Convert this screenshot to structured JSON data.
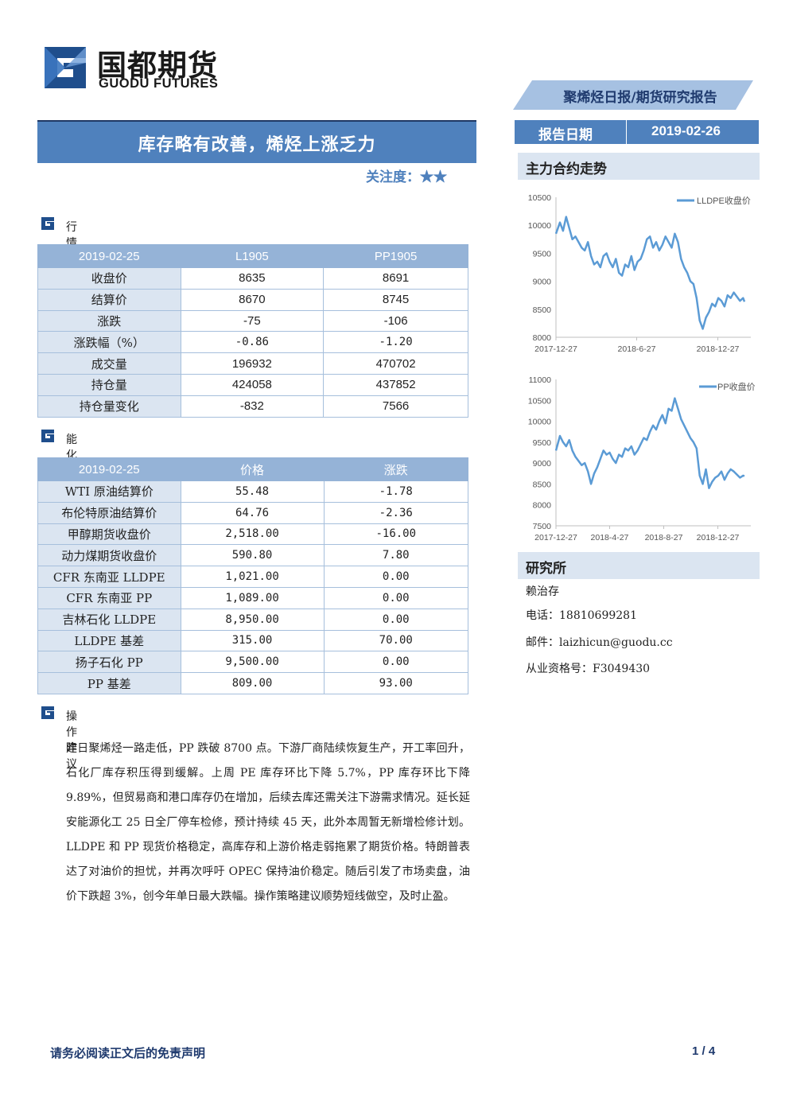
{
  "logo": {
    "cn": "国都期货",
    "en": "GUODU FUTURES"
  },
  "banner": "聚烯烃日报/期货研究报告",
  "title": "库存略有改善，烯烃上涨乏力",
  "attention": {
    "label": "关注度：",
    "stars": "★★"
  },
  "report_date": {
    "label": "报告日期",
    "value": "2019-02-26"
  },
  "section1": {
    "heading": "行情回顾",
    "headers": [
      "2019-02-25",
      "L1905",
      "PP1905"
    ],
    "rows": [
      [
        "收盘价",
        "8635",
        "8691"
      ],
      [
        "结算价",
        "8670",
        "8745"
      ],
      [
        "涨跌",
        "-75",
        "-106"
      ],
      [
        "涨跌幅（%）",
        "-0.86",
        "-1.20"
      ],
      [
        "成交量",
        "196932",
        "470702"
      ],
      [
        "持仓量",
        "424058",
        "437852"
      ],
      [
        "持仓量变化",
        "-832",
        "7566"
      ]
    ]
  },
  "section2": {
    "heading": "能化市场",
    "headers": [
      "2019-02-25",
      "价格",
      "涨跌"
    ],
    "rows": [
      [
        "WTI 原油结算价",
        "55.48",
        "-1.78"
      ],
      [
        "布伦特原油结算价",
        "64.76",
        "-2.36"
      ],
      [
        "甲醇期货收盘价",
        "2,518.00",
        "-16.00"
      ],
      [
        "动力煤期货收盘价",
        "590.80",
        "7.80"
      ],
      [
        "CFR 东南亚 LLDPE",
        "1,021.00",
        "0.00"
      ],
      [
        "CFR 东南亚 PP",
        "1,089.00",
        "0.00"
      ],
      [
        "吉林石化 LLDPE",
        "8,950.00",
        "0.00"
      ],
      [
        "LLDPE 基差",
        "315.00",
        "70.00"
      ],
      [
        "扬子石化 PP",
        "9,500.00",
        "0.00"
      ],
      [
        "PP 基差",
        "809.00",
        "93.00"
      ]
    ]
  },
  "section3": {
    "heading": "操作建议",
    "text": "昨日聚烯烃一路走低，PP 跌破 8700 点。下游厂商陆续恢复生产，开工率回升，石化厂库存积压得到缓解。上周 PE 库存环比下降 5.7%，PP 库存环比下降 9.89%，但贸易商和港口库存仍在增加，后续去库还需关注下游需求情况。延长延安能源化工 25 日全厂停车检修，预计持续 45 天，此外本周暂无新增检修计划。LLDPE 和 PP 现货价格稳定，高库存和上游价格走弱拖累了期货价格。特朗普表达了对油价的担忧，并再次呼吁 OPEC 保持油价稳定。随后引发了市场卖盘，油价下跌超 3%，创今年单日最大跌幅。操作策略建议顺势短线做空，及时止盈。"
  },
  "sidebar": {
    "trend_heading": "主力合约走势",
    "research_heading": "研究所",
    "analyst": "赖治存",
    "phone": "电话：18810699281",
    "email": "邮件：laizhicun@guodu.cc",
    "license": "从业资格号：F3049430"
  },
  "colors": {
    "accent": "#4f81bd",
    "header_fill": "#95b3d7",
    "label_fill": "#dbe5f1",
    "line": "#5b9bd5",
    "navy": "#1f3a6e"
  },
  "chart_data": [
    {
      "type": "line",
      "ylim": [
        8000,
        10500
      ],
      "yticks": [
        "10500",
        "10000",
        "9500",
        "9000",
        "8500",
        "8000"
      ],
      "xticks": [
        "2017-12-27",
        "2018-6-27",
        "2018-12-27"
      ],
      "series": [
        {
          "name": "LLDPE收盘价",
          "x": [
            "2017-12-27",
            "2018-01-05",
            "2018-01-12",
            "2018-01-19",
            "2018-01-26",
            "2018-02-02",
            "2018-02-09",
            "2018-02-23",
            "2018-03-02",
            "2018-03-09",
            "2018-03-16",
            "2018-03-23",
            "2018-03-30",
            "2018-04-06",
            "2018-04-13",
            "2018-04-20",
            "2018-04-27",
            "2018-05-04",
            "2018-05-11",
            "2018-05-18",
            "2018-05-25",
            "2018-06-01",
            "2018-06-08",
            "2018-06-15",
            "2018-06-22",
            "2018-06-29",
            "2018-07-06",
            "2018-07-13",
            "2018-07-20",
            "2018-07-27",
            "2018-08-03",
            "2018-08-10",
            "2018-08-17",
            "2018-08-24",
            "2018-08-31",
            "2018-09-07",
            "2018-09-14",
            "2018-09-21",
            "2018-09-28",
            "2018-10-05",
            "2018-10-12",
            "2018-10-19",
            "2018-10-26",
            "2018-11-02",
            "2018-11-09",
            "2018-11-16",
            "2018-11-23",
            "2018-11-30",
            "2018-12-07",
            "2018-12-14",
            "2018-12-21",
            "2018-12-28",
            "2019-01-04",
            "2019-01-11",
            "2019-01-18",
            "2019-01-25",
            "2019-02-01",
            "2019-02-15",
            "2019-02-22",
            "2019-02-25"
          ],
          "values": [
            9850,
            10050,
            9900,
            10150,
            9950,
            9750,
            9800,
            9600,
            9550,
            9700,
            9450,
            9300,
            9350,
            9250,
            9450,
            9500,
            9350,
            9250,
            9400,
            9150,
            9100,
            9300,
            9250,
            9450,
            9200,
            9350,
            9400,
            9550,
            9750,
            9800,
            9600,
            9700,
            9550,
            9650,
            9800,
            9700,
            9600,
            9850,
            9700,
            9400,
            9250,
            9150,
            9000,
            8950,
            8700,
            8300,
            8150,
            8350,
            8450,
            8600,
            8550,
            8700,
            8650,
            8550,
            8750,
            8700,
            8800,
            8650,
            8700,
            8635
          ]
        }
      ]
    },
    {
      "type": "line",
      "ylim": [
        7500,
        11000
      ],
      "yticks": [
        "11000",
        "10500",
        "10000",
        "9500",
        "9000",
        "8500",
        "8000",
        "7500"
      ],
      "xticks": [
        "2017-12-27",
        "2018-4-27",
        "2018-8-27",
        "2018-12-27"
      ],
      "series": [
        {
          "name": "PP收盘价",
          "x": [
            "2017-12-27",
            "2018-01-05",
            "2018-01-12",
            "2018-01-19",
            "2018-01-26",
            "2018-02-02",
            "2018-02-09",
            "2018-02-23",
            "2018-03-02",
            "2018-03-09",
            "2018-03-16",
            "2018-03-23",
            "2018-03-30",
            "2018-04-06",
            "2018-04-13",
            "2018-04-20",
            "2018-04-27",
            "2018-05-04",
            "2018-05-11",
            "2018-05-18",
            "2018-05-25",
            "2018-06-01",
            "2018-06-08",
            "2018-06-15",
            "2018-06-22",
            "2018-06-29",
            "2018-07-06",
            "2018-07-13",
            "2018-07-20",
            "2018-07-27",
            "2018-08-03",
            "2018-08-10",
            "2018-08-17",
            "2018-08-24",
            "2018-08-31",
            "2018-09-07",
            "2018-09-14",
            "2018-09-21",
            "2018-09-28",
            "2018-10-05",
            "2018-10-12",
            "2018-10-19",
            "2018-10-26",
            "2018-11-02",
            "2018-11-09",
            "2018-11-16",
            "2018-11-23",
            "2018-11-30",
            "2018-12-07",
            "2018-12-14",
            "2018-12-21",
            "2018-12-28",
            "2019-01-04",
            "2019-01-11",
            "2019-01-18",
            "2019-01-25",
            "2019-02-01",
            "2019-02-15",
            "2019-02-22",
            "2019-02-25"
          ],
          "values": [
            9300,
            9650,
            9500,
            9400,
            9550,
            9300,
            9150,
            8950,
            9000,
            8800,
            8500,
            8750,
            8900,
            9100,
            9300,
            9200,
            9250,
            9100,
            9000,
            9200,
            9150,
            9350,
            9300,
            9400,
            9200,
            9300,
            9450,
            9600,
            9550,
            9750,
            9900,
            9800,
            10000,
            10150,
            9950,
            10300,
            10250,
            10550,
            10300,
            10050,
            9900,
            9750,
            9600,
            9500,
            9350,
            8700,
            8500,
            8850,
            8400,
            8550,
            8650,
            8700,
            8800,
            8600,
            8750,
            8850,
            8800,
            8650,
            8700,
            8691
          ]
        }
      ]
    }
  ],
  "footer": {
    "disclaimer": "请务必阅读正文后的免责声明",
    "page": "1 / 4"
  }
}
